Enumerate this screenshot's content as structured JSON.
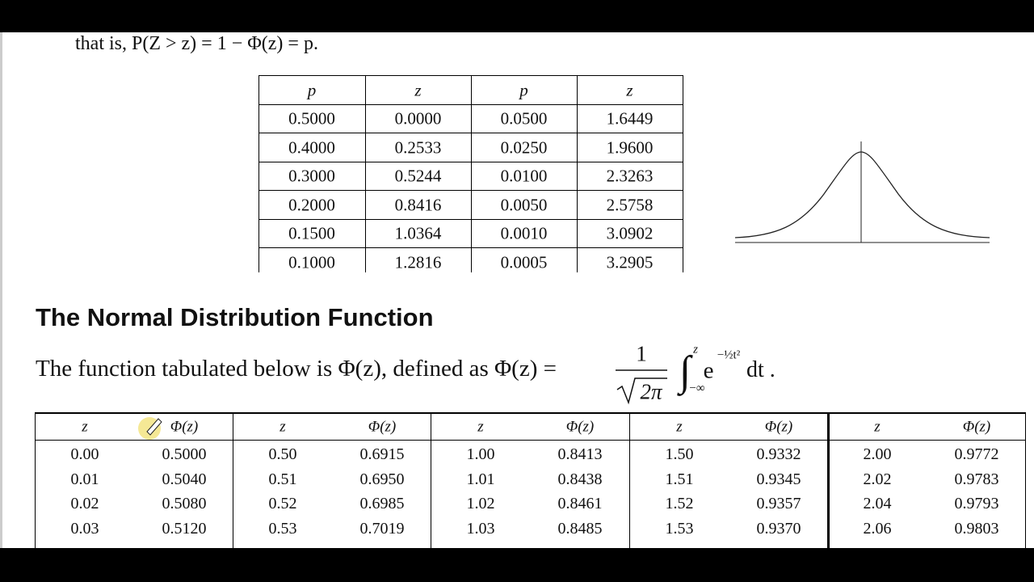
{
  "intro": "that is, P(Z > z) = 1 − Φ(z) = p.",
  "upper_table": {
    "header": [
      "p",
      "z",
      "p",
      "z"
    ],
    "rows": [
      [
        "0.5000",
        "0.0000",
        "0.0500",
        "1.6449"
      ],
      [
        "0.4000",
        "0.2533",
        "0.0250",
        "1.9600"
      ],
      [
        "0.3000",
        "0.5244",
        "0.0100",
        "2.3263"
      ],
      [
        "0.2000",
        "0.8416",
        "0.0050",
        "2.5758"
      ],
      [
        "0.1500",
        "1.0364",
        "0.0010",
        "3.0902"
      ],
      [
        "0.1000",
        "1.2816",
        "0.0005",
        "3.2905"
      ]
    ]
  },
  "heading": "The Normal Distribution Function",
  "formula": {
    "lead": "The function tabulated below is Φ(z), defined as Φ(z) =",
    "numerator": "1",
    "denominator": "2π",
    "integral": "∫",
    "upper_limit": "z",
    "lower_limit": "−∞",
    "integrand": "e",
    "exponent": "−½t²",
    "tail": "dt ."
  },
  "lower_table": {
    "header": [
      "z",
      "Φ(z)",
      "z",
      "Φ(z)",
      "z",
      "Φ(z)",
      "z",
      "Φ(z)",
      "z",
      "Φ(z)"
    ],
    "rows": [
      [
        "0.00",
        "0.5000",
        "0.50",
        "0.6915",
        "1.00",
        "0.8413",
        "1.50",
        "0.9332",
        "2.00",
        "0.9772"
      ],
      [
        "0.01",
        "0.5040",
        "0.51",
        "0.6950",
        "1.01",
        "0.8438",
        "1.51",
        "0.9345",
        "2.02",
        "0.9783"
      ],
      [
        "0.02",
        "0.5080",
        "0.52",
        "0.6985",
        "1.02",
        "0.8461",
        "1.52",
        "0.9357",
        "2.04",
        "0.9793"
      ],
      [
        "0.03",
        "0.5120",
        "0.53",
        "0.7019",
        "1.03",
        "0.8485",
        "1.53",
        "0.9370",
        "2.06",
        "0.9803"
      ]
    ]
  }
}
